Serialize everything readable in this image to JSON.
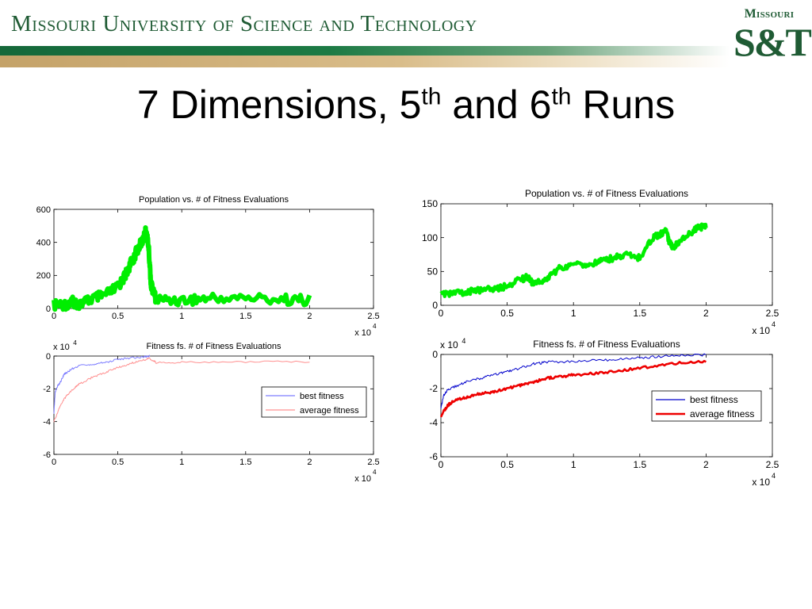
{
  "header": {
    "university_name": "Missouri University of Science and Technology",
    "logo_top": "Missouri",
    "logo_main": "S&T",
    "colors": {
      "green": "#1f5b34",
      "gold": "#c4a268"
    }
  },
  "slide": {
    "title_prefix": "7 Dimensions, 5",
    "title_sup1": "th",
    "title_middle": " and 6",
    "title_sup2": "th",
    "title_suffix": " Runs"
  },
  "chart_data": [
    {
      "id": "pop5",
      "type": "line",
      "title": "Population vs. # of Fitness Evaluations",
      "xlim": [
        0,
        2.5
      ],
      "ylim": [
        0,
        600
      ],
      "x_ticks": [
        "0",
        "0.5",
        "1",
        "1.5",
        "2",
        "2.5"
      ],
      "y_ticks": [
        "0",
        "200",
        "400",
        "600"
      ],
      "x_multiplier": "x 10",
      "x_multiplier_exp": "4",
      "series": [
        {
          "color": "#00ee00",
          "x": [
            0,
            0.1,
            0.15,
            0.2,
            0.3,
            0.4,
            0.5,
            0.55,
            0.6,
            0.65,
            0.7,
            0.72,
            0.74,
            0.76,
            0.8,
            1.0,
            1.2,
            1.5,
            1.8,
            2.0
          ],
          "y": [
            20,
            25,
            40,
            25,
            60,
            80,
            130,
            190,
            270,
            350,
            420,
            470,
            380,
            140,
            55,
            50,
            60,
            65,
            55,
            50
          ]
        }
      ]
    },
    {
      "id": "fit5",
      "type": "line",
      "title": "Fitness fs. # of Fitness Evaluations",
      "xlim": [
        0,
        2.5
      ],
      "ylim": [
        -6,
        0
      ],
      "x_ticks": [
        "0",
        "0.5",
        "1",
        "1.5",
        "2",
        "2.5"
      ],
      "y_ticks": [
        "-6",
        "-4",
        "-2",
        "0"
      ],
      "x_multiplier": "x 10",
      "x_multiplier_exp": "4",
      "y_multiplier": "x 10",
      "y_multiplier_exp": "4",
      "legend_position": "right",
      "series": [
        {
          "name": "best fitness",
          "color": "#7f7fff",
          "x": [
            0,
            0.01,
            0.03,
            0.05,
            0.08,
            0.1,
            0.15,
            0.2,
            0.3,
            0.4,
            0.5,
            0.6,
            0.7,
            0.75
          ],
          "y": [
            -3.5,
            -2.2,
            -1.8,
            -1.6,
            -1.1,
            -1.0,
            -0.75,
            -0.6,
            -0.5,
            -0.4,
            -0.2,
            -0.12,
            -0.05,
            0
          ]
        },
        {
          "name": "average fitness",
          "color": "#ff9090",
          "x": [
            0,
            0.05,
            0.1,
            0.15,
            0.2,
            0.3,
            0.4,
            0.5,
            0.6,
            0.7,
            0.75,
            0.8,
            1.0,
            1.5,
            2.0
          ],
          "y": [
            -4.0,
            -3.0,
            -2.4,
            -2.0,
            -1.7,
            -1.3,
            -1.0,
            -0.7,
            -0.45,
            -0.25,
            -0.15,
            -0.4,
            -0.38,
            -0.35,
            -0.35
          ]
        }
      ]
    },
    {
      "id": "pop6",
      "type": "line",
      "title": "Population vs. # of Fitness Evaluations",
      "xlim": [
        0,
        2.5
      ],
      "ylim": [
        0,
        150
      ],
      "x_ticks": [
        "0",
        "0.5",
        "1",
        "1.5",
        "2",
        "2.5"
      ],
      "y_ticks": [
        "0",
        "50",
        "100",
        "150"
      ],
      "x_multiplier": "x 10",
      "x_multiplier_exp": "4",
      "series": [
        {
          "color": "#00ee00",
          "x": [
            0,
            0.1,
            0.2,
            0.3,
            0.4,
            0.5,
            0.6,
            0.65,
            0.7,
            0.8,
            0.9,
            1.0,
            1.1,
            1.2,
            1.3,
            1.4,
            1.5,
            1.6,
            1.65,
            1.7,
            1.72,
            1.75,
            1.8,
            1.9,
            1.95,
            2.0
          ],
          "y": [
            15,
            18,
            20,
            22,
            25,
            28,
            38,
            42,
            30,
            40,
            55,
            60,
            60,
            65,
            70,
            75,
            70,
            100,
            105,
            110,
            95,
            85,
            95,
            110,
            115,
            118
          ]
        }
      ]
    },
    {
      "id": "fit6",
      "type": "line",
      "title": "Fitness fs. # of Fitness Evaluations",
      "xlim": [
        0,
        2.5
      ],
      "ylim": [
        -6,
        0
      ],
      "x_ticks": [
        "0",
        "0.5",
        "1",
        "1.5",
        "2",
        "2.5"
      ],
      "y_ticks": [
        "-6",
        "-4",
        "-2",
        "0"
      ],
      "x_multiplier": "x 10",
      "x_multiplier_exp": "4",
      "y_multiplier": "x 10",
      "y_multiplier_exp": "4",
      "legend_position": "right",
      "series": [
        {
          "name": "best fitness",
          "color": "#0000cc",
          "x": [
            0,
            0.02,
            0.05,
            0.1,
            0.2,
            0.3,
            0.4,
            0.5,
            0.6,
            0.7,
            0.8,
            1.0,
            1.2,
            1.4,
            1.6,
            1.8,
            2.0
          ],
          "y": [
            -3.2,
            -2.4,
            -2.1,
            -1.9,
            -1.6,
            -1.4,
            -1.2,
            -1.0,
            -0.8,
            -0.55,
            -0.45,
            -0.4,
            -0.35,
            -0.25,
            -0.15,
            -0.05,
            -0.02
          ]
        },
        {
          "name": "average fitness",
          "color": "#ee0000",
          "x": [
            0,
            0.05,
            0.1,
            0.2,
            0.3,
            0.4,
            0.5,
            0.6,
            0.7,
            0.8,
            0.9,
            1.0,
            1.2,
            1.4,
            1.6,
            1.8,
            2.0
          ],
          "y": [
            -3.6,
            -3.0,
            -2.7,
            -2.5,
            -2.3,
            -2.2,
            -2.0,
            -1.8,
            -1.6,
            -1.4,
            -1.3,
            -1.2,
            -1.1,
            -0.9,
            -0.7,
            -0.5,
            -0.4
          ]
        }
      ]
    }
  ]
}
